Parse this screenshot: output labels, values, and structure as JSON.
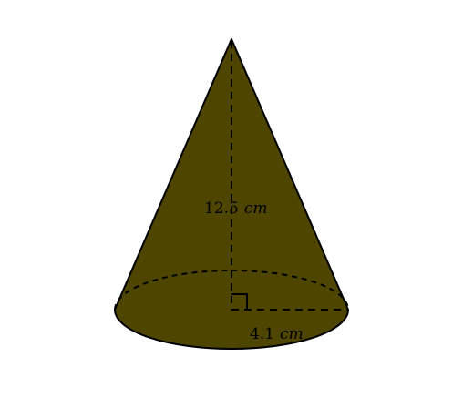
{
  "figure": {
    "shape": "cone",
    "fill_color": "#4d4500",
    "stroke_color": "#000000",
    "height": {
      "value": "12.5",
      "unit": "cm"
    },
    "radius": {
      "value": "4.1",
      "unit": "cm"
    },
    "right_angle_marker": true,
    "dashed_lines": [
      "height",
      "radius",
      "base-back-edge"
    ]
  }
}
